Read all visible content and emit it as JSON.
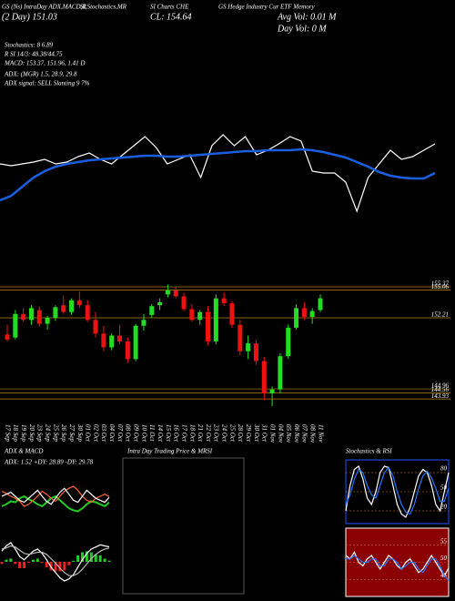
{
  "header": {
    "line1": [
      "GS (Ns) IntraDay ADX,MACD,R",
      "SI,Stochastics,MR",
      "SI Charts CHE",
      "GS Hedge Industry Cur ETF Memory"
    ],
    "line2": [
      "(2 Day) 151.03",
      "CL: 154.64",
      "Avg Vol: 0.01 M"
    ],
    "line3": "Day Vol: 0  M"
  },
  "stats": [
    "Stochastics: 8          6.89",
    "R SI 14/3: 48.38/44.75",
    "MACD: 153.37, 151.96, 1.41 D",
    "ADX: (MGR) 1.5, 28.9, 29.8",
    "ADX signal: SELL Slanting 9 7%"
  ],
  "middle_title": "Intra Day Trading Price & MRSI",
  "chart_data": [
    {
      "type": "line",
      "ylim": [
        140,
        160
      ],
      "series": [
        {
          "color": "#ffffff",
          "values": [
            151.67,
            151.33,
            151.67,
            152,
            152.5,
            151.67,
            152,
            153,
            153.67,
            152.5,
            151.67,
            153.33,
            155,
            156.67,
            154.67,
            151.67,
            152.5,
            153.33,
            149.17,
            155,
            157,
            155,
            156.67,
            153.33,
            154.17,
            155.33,
            156.67,
            155.83,
            150.33,
            150,
            150,
            148.33,
            143,
            149.17,
            151.67,
            154.17,
            152.5,
            153,
            154.17,
            155.33
          ]
        },
        {
          "color": "#1a5fe0",
          "values": [
            145,
            145.83,
            147.5,
            149.17,
            150.33,
            151.17,
            151.67,
            152,
            152.33,
            152.5,
            152.67,
            152.83,
            153,
            153.17,
            153.17,
            153,
            153,
            153.17,
            153.33,
            153.5,
            153.67,
            153.83,
            154,
            154,
            154.17,
            154.17,
            154.17,
            154.33,
            154.17,
            153.83,
            153.33,
            152.83,
            152,
            151.17,
            150.17,
            149.5,
            149.17,
            149,
            149,
            150
          ]
        }
      ]
    },
    {
      "type": "candlestick",
      "ylim": [
        141.9,
        156.3
      ],
      "yticks": [
        155.37,
        155.06,
        152.21,
        144.96,
        144.56,
        143.93
      ],
      "up_color": "#22dd22",
      "down_color": "#ee1111",
      "line_color": "#b8860b",
      "categories": [
        "17 Sep",
        "18 Sep",
        "19 Sep",
        "20 Sep",
        "23 Sep",
        "24 Sep",
        "25 Sep",
        "26 Sep",
        "27 Sep",
        "30 Sep",
        "01 Oct",
        "02 Oct",
        "03 Oct",
        "04 Oct",
        "07 Oct",
        "08 Oct",
        "09 Oct",
        "10 Oct",
        "11 Oct",
        "14 Oct",
        "15 Oct",
        "16 Oct",
        "17 Oct",
        "18 Oct",
        "21 Oct",
        "22 Oct",
        "23 Oct",
        "24 Oct",
        "25 Oct",
        "28 Oct",
        "29 Oct",
        "30 Oct",
        "31 Oct",
        "01 Nov",
        "04 Nov",
        "05 Nov",
        "06 Nov",
        "07 Nov",
        "08 Nov",
        "11 Nov"
      ],
      "open": [
        150.5,
        150.2,
        152.6,
        152.0,
        153.0,
        151.6,
        152.2,
        153.5,
        152.8,
        154.0,
        153.5,
        152.0,
        150.6,
        149.2,
        150.4,
        149.8,
        148.0,
        151.4,
        152.5,
        153.5,
        154.6,
        155.0,
        154.4,
        153.1,
        152.0,
        152.8,
        149.8,
        154.2,
        153.7,
        151.5,
        148.8,
        149.6,
        147.8,
        144.5,
        144.9,
        148.3,
        151.2,
        153.2,
        152.3,
        153.0
      ],
      "high": [
        151.5,
        153.0,
        153.2,
        153.5,
        153.4,
        152.4,
        153.5,
        154.5,
        154.2,
        154.9,
        154.0,
        152.8,
        151.4,
        150.6,
        151.5,
        150.2,
        151.6,
        152.6,
        153.6,
        154.2,
        155.6,
        155.4,
        154.8,
        153.6,
        153.0,
        153.4,
        154.6,
        154.8,
        153.9,
        152.0,
        150.4,
        150.0,
        148.2,
        145.2,
        148.6,
        151.5,
        153.6,
        153.8,
        153.2,
        154.6
      ],
      "low": [
        149.8,
        150.0,
        151.8,
        151.5,
        151.3,
        151.0,
        151.9,
        152.6,
        152.5,
        153.2,
        151.8,
        150.2,
        148.8,
        148.9,
        149.5,
        147.6,
        147.8,
        150.9,
        152.2,
        153.0,
        154.3,
        154.2,
        152.9,
        151.8,
        151.5,
        149.4,
        149.5,
        153.4,
        151.2,
        148.4,
        148.0,
        147.4,
        143.8,
        143.2,
        144.5,
        148.0,
        151.0,
        152.0,
        151.6,
        152.8
      ],
      "close": [
        150.0,
        152.6,
        152.0,
        153.2,
        151.6,
        152.2,
        153.3,
        152.8,
        154.0,
        153.5,
        152.0,
        150.6,
        149.2,
        150.4,
        149.8,
        148.0,
        151.4,
        152.0,
        153.4,
        153.8,
        155.0,
        154.4,
        153.1,
        152.0,
        152.8,
        149.8,
        154.2,
        153.7,
        151.5,
        148.8,
        149.6,
        147.8,
        144.5,
        144.9,
        148.3,
        151.2,
        153.2,
        152.3,
        152.9,
        154.2
      ]
    },
    {
      "type": "line",
      "title": "ADX & MACD",
      "subtitle": "ADX: 1.52 +DY: 28.89 -DY: 29.78",
      "ylim": [
        0,
        60
      ],
      "series": [
        {
          "color": "#22cc22",
          "values": [
            20,
            22,
            25,
            24,
            28,
            30,
            27,
            25,
            22,
            20,
            24,
            28,
            30,
            26,
            22,
            18,
            16,
            15,
            18,
            22,
            25,
            24,
            22,
            20,
            24
          ]
        },
        {
          "color": "#ff6633",
          "values": [
            35,
            33,
            30,
            28,
            25,
            20,
            22,
            26,
            30,
            35,
            32,
            28,
            25,
            30,
            35,
            38,
            40,
            36,
            30,
            26,
            24,
            28,
            30,
            32,
            29.78
          ]
        },
        {
          "color": "#ffffff",
          "values": [
            30,
            32,
            34,
            30,
            26,
            24,
            28,
            32,
            36,
            30,
            25,
            22,
            28,
            34,
            38,
            32,
            26,
            24,
            30,
            36,
            32,
            28,
            26,
            24,
            28.89
          ]
        }
      ]
    },
    {
      "type": "line",
      "ylim": [
        -3,
        3
      ],
      "series": [
        {
          "style": "bar",
          "values": [
            -0.2,
            0.2,
            0.3,
            -0.2,
            -0.6,
            -0.6,
            -0.1,
            0.2,
            0.3,
            -0.1,
            -0.5,
            -0.8,
            -0.9,
            -0.9,
            -0.8,
            -0.3,
            0.1,
            0.6,
            0.9,
            1,
            0.9,
            0.7,
            0.6,
            0.3,
            0.11
          ]
        },
        {
          "color": "#ffffff",
          "values": [
            1,
            1.5,
            1.8,
            1.2,
            0.5,
            0.2,
            0.6,
            1,
            1.2,
            0.8,
            0.2,
            -0.5,
            -1,
            -1.5,
            -1.8,
            -1.6,
            -1.2,
            -0.5,
            0.2,
            0.8,
            1.2,
            1.4,
            1.6,
            1.5,
            1.41
          ]
        },
        {
          "color": "#bbbbbb",
          "values": [
            1.2,
            1.3,
            1.5,
            1.4,
            1.1,
            0.8,
            0.7,
            0.8,
            0.9,
            0.9,
            0.7,
            0.3,
            -0.1,
            -0.6,
            -1,
            -1.3,
            -1.3,
            -1.1,
            -0.7,
            -0.2,
            0.3,
            0.7,
            1,
            1.2,
            1.3
          ]
        }
      ]
    },
    {
      "type": "line",
      "title": "Stochastics & RSI",
      "ylim": [
        0,
        100
      ],
      "yticks": [
        80,
        50,
        20
      ],
      "background": "#000000",
      "series": [
        {
          "color": "#ffffff",
          "values": [
            20,
            60,
            85,
            90,
            70,
            40,
            30,
            50,
            80,
            90,
            88,
            60,
            30,
            15,
            10,
            25,
            50,
            75,
            85,
            80,
            60,
            30,
            20,
            50,
            80
          ]
        },
        {
          "color": "#2277ff",
          "values": [
            30,
            45,
            70,
            85,
            80,
            60,
            45,
            40,
            60,
            80,
            88,
            75,
            50,
            30,
            18,
            15,
            30,
            55,
            75,
            82,
            72,
            55,
            35,
            35,
            55
          ]
        }
      ]
    },
    {
      "type": "line",
      "ylim": [
        40,
        60
      ],
      "yticks": [
        55,
        50,
        45
      ],
      "background": "#8b0000",
      "series": [
        {
          "color": "#ffffff",
          "values": [
            52,
            51,
            53,
            50,
            49,
            51,
            52,
            50,
            48,
            50,
            52,
            51,
            49,
            48,
            50,
            51,
            49,
            47,
            48,
            50,
            52,
            50,
            48,
            46,
            48.38
          ]
        },
        {
          "color": "#2277ff",
          "values": [
            51,
            51,
            52,
            51,
            50,
            50,
            51,
            51,
            49,
            49,
            51,
            51,
            50,
            48,
            49,
            50,
            50,
            48,
            47,
            49,
            51,
            51,
            49,
            46,
            44.75
          ]
        }
      ]
    }
  ]
}
